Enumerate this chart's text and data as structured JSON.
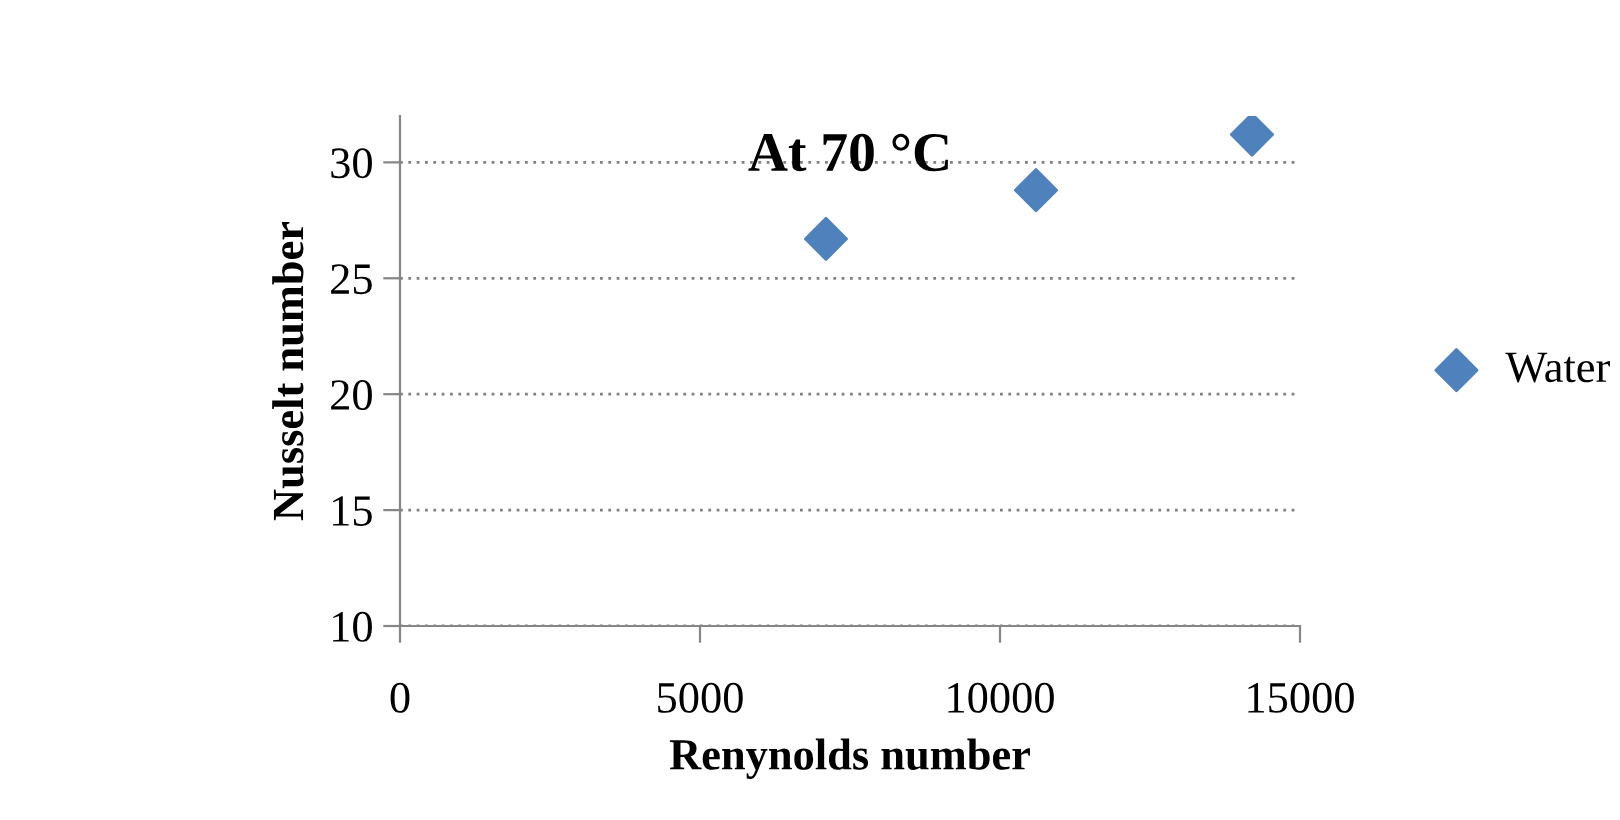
{
  "chart_data": {
    "type": "scatter",
    "title": "At 70 °C",
    "xlabel": "Renynolds number",
    "ylabel": "Nusselt number",
    "x": [
      7100,
      10600,
      14200
    ],
    "series": [
      {
        "name": "Water",
        "color": "#4f81bd",
        "values": [
          26.7,
          28.8,
          31.2
        ]
      }
    ],
    "xlim": [
      0,
      15000
    ],
    "xticks": [
      0,
      5000,
      10000,
      15000
    ],
    "ylim": [
      10,
      32
    ],
    "yticks": [
      10,
      15,
      20,
      25,
      30
    ],
    "grid": "y",
    "legend": "right",
    "marker": "diamond"
  }
}
